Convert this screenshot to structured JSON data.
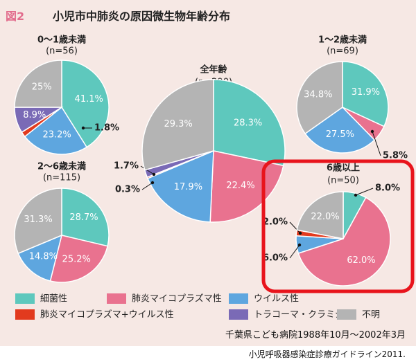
{
  "header": {
    "fig_label": "図2",
    "title": "小児市中肺炎の原因微生物年齢分布"
  },
  "categories": [
    {
      "label": "細菌性",
      "color": "#5ec8bd"
    },
    {
      "label": "肺炎マイコプラズマ性",
      "color": "#e9728f"
    },
    {
      "label": "ウイルス性",
      "color": "#5ea6df"
    },
    {
      "label": "肺炎マイコプラズマ+ウイルス性",
      "color": "#e23a1e"
    },
    {
      "label": "トラコーマ・クラミジア",
      "color": "#7a6ab6"
    },
    {
      "label": "不明",
      "color": "#b4b4b4"
    }
  ],
  "chart_data": [
    {
      "type": "pie",
      "title": "0〜1歳未満",
      "subtitle": "(n=56)",
      "categories": [
        "細菌性",
        "肺炎マイコプラズマ性",
        "ウイルス性",
        "肺炎マイコプラズマ+ウイルス性",
        "トラコーマ・クラミジア",
        "不明"
      ],
      "values": [
        41.1,
        0,
        23.2,
        1.8,
        8.9,
        25.0
      ],
      "labels": [
        "41.1%",
        "",
        "23.2%",
        "1.8%",
        "8.9%",
        "25%"
      ]
    },
    {
      "type": "pie",
      "title": "1〜2歳未満",
      "subtitle": "(n=69)",
      "categories": [
        "細菌性",
        "肺炎マイコプラズマ性",
        "ウイルス性",
        "肺炎マイコプラズマ+ウイルス性",
        "トラコーマ・クラミジア",
        "不明"
      ],
      "values": [
        31.9,
        5.8,
        27.5,
        0,
        0,
        34.8
      ],
      "labels": [
        "31.9%",
        "5.8%",
        "27.5%",
        "",
        "",
        "34.8%"
      ]
    },
    {
      "type": "pie",
      "title": "全年齢",
      "subtitle": "(n=290)",
      "categories": [
        "細菌性",
        "肺炎マイコプラズマ性",
        "ウイルス性",
        "肺炎マイコプラズマ+ウイルス性",
        "トラコーマ・クラミジア",
        "不明"
      ],
      "values": [
        28.3,
        22.4,
        17.9,
        0.3,
        1.7,
        29.3
      ],
      "labels": [
        "28.3%",
        "22.4%",
        "17.9%",
        "0.3%",
        "1.7%",
        "29.3%"
      ]
    },
    {
      "type": "pie",
      "title": "2〜6歳未満",
      "subtitle": "(n=115)",
      "categories": [
        "細菌性",
        "肺炎マイコプラズマ性",
        "ウイルス性",
        "肺炎マイコプラズマ+ウイルス性",
        "トラコーマ・クラミジア",
        "不明"
      ],
      "values": [
        28.7,
        25.2,
        14.8,
        0,
        0,
        31.3
      ],
      "labels": [
        "28.7%",
        "25.2%",
        "14.8%",
        "",
        "",
        "31.3%"
      ]
    },
    {
      "type": "pie",
      "title": "6歳以上",
      "subtitle": "(n=50)",
      "categories": [
        "細菌性",
        "肺炎マイコプラズマ性",
        "ウイルス性",
        "肺炎マイコプラズマ+ウイルス性",
        "トラコーマ・クラミジア",
        "不明"
      ],
      "values": [
        8.0,
        62.0,
        6.0,
        2.0,
        0,
        22.0
      ],
      "labels": [
        "8.0%",
        "62.0%",
        "6.0%",
        "2.0%",
        "",
        "22.0%"
      ],
      "highlighted": true,
      "highlight_color": "#e8141c"
    }
  ],
  "footer": {
    "source": "千葉県こども病院1988年10月〜2002年3月",
    "guideline": "小児呼吸器感染症診療ガイドライン2011."
  }
}
